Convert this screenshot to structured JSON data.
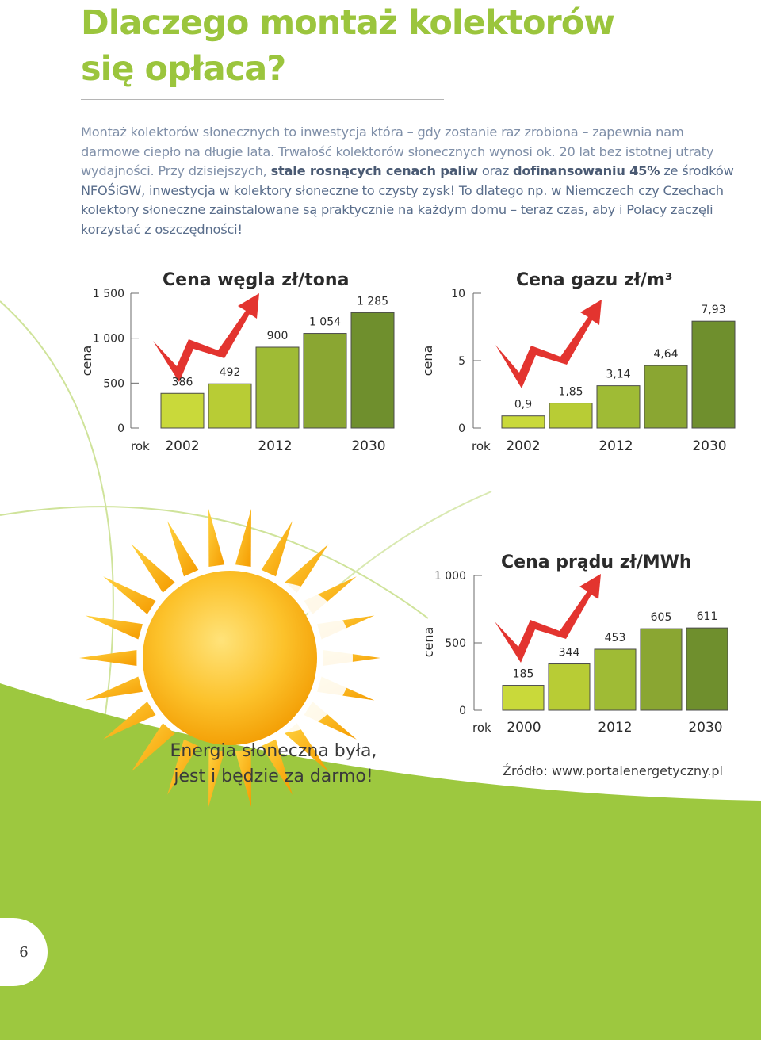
{
  "page": {
    "title_line1": "Dlaczego montaż kolektorów",
    "title_line2": "się opłaca?",
    "intro": {
      "part1": "Montaż kolektorów słonecznych to inwestycja która – gdy zostanie raz zrobiona – zapewnia nam darmowe ciepło na długie lata. Trwałość kolektorów słonecznych wynosi ok. 20 lat bez istotnej utraty wydajności. Przy dzisiejszych, ",
      "bold1": "stale rosnących cenach paliw",
      "part2": " oraz ",
      "bold2": "dofinansowaniu 45%",
      "part3": " ze środków NFOŚiGW, inwestycja w kolektory słoneczne to czysty zysk! To dlatego np. w Niemczech czy Czechach kolektory słoneczne zainstalowane są praktycznie na każdym domu – teraz czas, aby i Polacy zaczęli korzystać z oszczędności!"
    },
    "slogan_line1": "Energia słoneczna była,",
    "slogan_line2": "jest i będzie za darmo!",
    "source": "Źródło: www.portalenergetyczny.pl",
    "page_number": "6",
    "colors": {
      "accent_green": "#9bc53d",
      "arrow_red": "#e3342f",
      "sun_orange": "#f7a600"
    }
  },
  "chart_data": [
    {
      "type": "bar",
      "title": "Cena węgla zł/tona",
      "ylabel": "cena",
      "xlabel": "rok",
      "ylim": [
        0,
        1500
      ],
      "yticks": [
        "0",
        "500",
        "1 000",
        "1 500"
      ],
      "x_tick_labels": [
        "2002",
        "2012",
        "2030"
      ],
      "values": [
        386,
        492,
        900,
        1054,
        1285
      ],
      "value_labels": [
        "386",
        "492",
        "900",
        "1 054",
        "1 285"
      ],
      "bar_colors": [
        "#c9d93a",
        "#b8cc35",
        "#9fbb35",
        "#8aa632",
        "#6f8f2d"
      ]
    },
    {
      "type": "bar",
      "title": "Cena gazu zł/m³",
      "ylabel": "cena",
      "xlabel": "rok",
      "ylim": [
        0,
        10
      ],
      "yticks": [
        "0",
        "5",
        "10"
      ],
      "x_tick_labels": [
        "2002",
        "2012",
        "2030"
      ],
      "values": [
        0.9,
        1.85,
        3.14,
        4.64,
        7.93
      ],
      "value_labels": [
        "0,9",
        "1,85",
        "3,14",
        "4,64",
        "7,93"
      ],
      "bar_colors": [
        "#c9d93a",
        "#b8cc35",
        "#9fbb35",
        "#8aa632",
        "#6f8f2d"
      ]
    },
    {
      "type": "bar",
      "title": "Cena prądu zł/MWh",
      "ylabel": "cena",
      "xlabel": "rok",
      "ylim": [
        0,
        1000
      ],
      "yticks": [
        "0",
        "500",
        "1 000"
      ],
      "x_tick_labels": [
        "2000",
        "2012",
        "2030"
      ],
      "values": [
        185,
        344,
        453,
        605,
        611
      ],
      "value_labels": [
        "185",
        "344",
        "453",
        "605",
        "611"
      ],
      "bar_colors": [
        "#c9d93a",
        "#b8cc35",
        "#9fbb35",
        "#8aa632",
        "#6f8f2d"
      ]
    }
  ]
}
